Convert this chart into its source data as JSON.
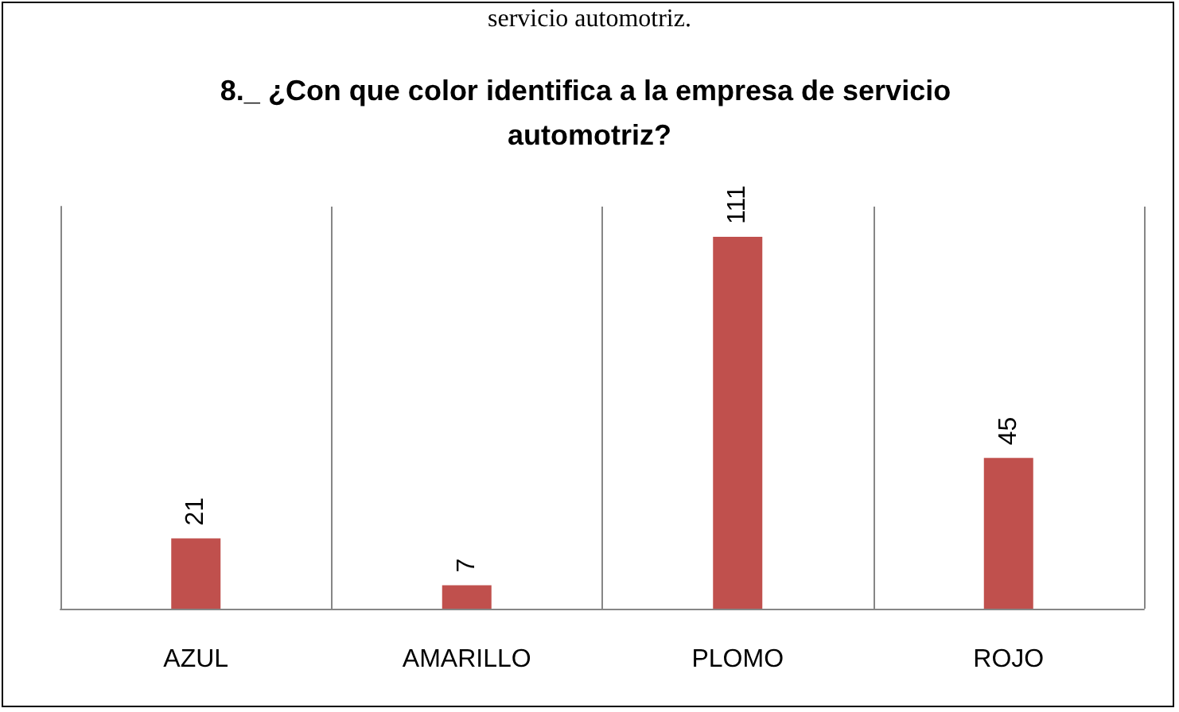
{
  "chart_data": {
    "type": "bar",
    "title": "8._ ¿Con que color identifica a la empresa de servicio automotriz?",
    "annotations": [
      "servicio automotriz."
    ],
    "categories": [
      "AZUL",
      "AMARILLO",
      "PLOMO",
      "ROJO"
    ],
    "values": [
      21,
      7,
      111,
      45
    ],
    "color": "#c0504d",
    "data_labels": true,
    "grid": "x"
  }
}
